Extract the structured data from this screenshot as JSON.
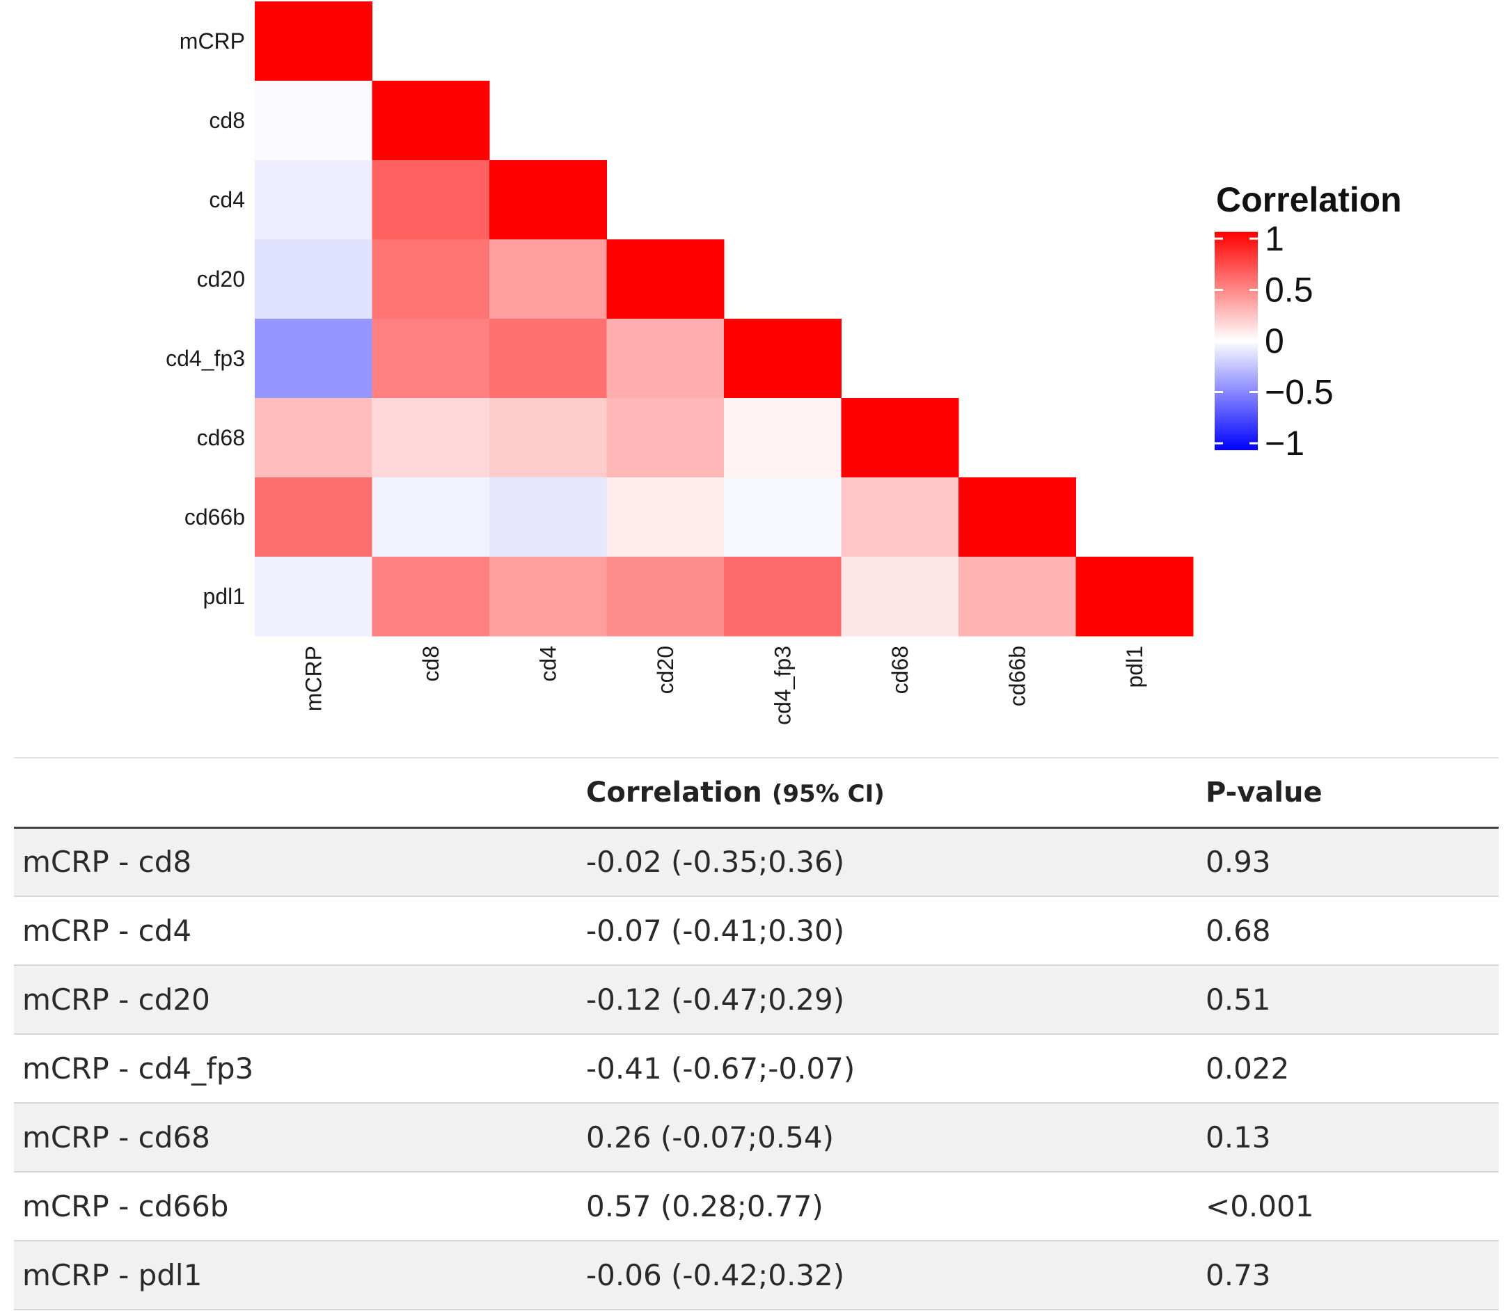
{
  "chart_data": [
    {
      "type": "heatmap",
      "variables": [
        "mCRP",
        "cd8",
        "cd4",
        "cd20",
        "cd4_fp3",
        "cd68",
        "cd66b",
        "pdl1"
      ],
      "layout": "lower-triangle",
      "matrix": [
        [
          1.0
        ],
        [
          -0.02,
          1.0
        ],
        [
          -0.07,
          0.62,
          1.0
        ],
        [
          -0.12,
          0.55,
          0.38,
          1.0
        ],
        [
          -0.41,
          0.5,
          0.56,
          0.32,
          1.0
        ],
        [
          0.26,
          0.15,
          0.2,
          0.28,
          0.05,
          1.0
        ],
        [
          0.57,
          -0.05,
          -0.1,
          0.08,
          -0.03,
          0.22,
          1.0
        ],
        [
          -0.06,
          0.5,
          0.38,
          0.45,
          0.58,
          0.1,
          0.3,
          1.0
        ]
      ],
      "legend": {
        "title": "Correlation",
        "ticks": [
          "1",
          "0.5",
          "0",
          "−0.5",
          "−1"
        ],
        "range": [
          -1,
          1
        ]
      },
      "colors": {
        "low": "#0000ff",
        "mid": "#ffffff",
        "high": "#ff0000"
      }
    },
    {
      "type": "table",
      "columns": [
        "",
        "Correlation",
        "(95% CI)",
        "P-value"
      ],
      "rows": [
        {
          "pair": "mCRP - cd8",
          "corr": "-0.02 (-0.35;0.36)",
          "p": "0.93"
        },
        {
          "pair": "mCRP - cd4",
          "corr": "-0.07 (-0.41;0.30)",
          "p": "0.68"
        },
        {
          "pair": "mCRP - cd20",
          "corr": "-0.12 (-0.47;0.29)",
          "p": "0.51"
        },
        {
          "pair": "mCRP - cd4_fp3",
          "corr": "-0.41 (-0.67;-0.07)",
          "p": "0.022"
        },
        {
          "pair": "mCRP - cd68",
          "corr": "0.26 (-0.07;0.54)",
          "p": "0.13"
        },
        {
          "pair": "mCRP - cd66b",
          "corr": "0.57 (0.28;0.77)",
          "p": "<0.001"
        },
        {
          "pair": "mCRP - pdl1",
          "corr": "-0.06 (-0.42;0.32)",
          "p": "0.73"
        }
      ]
    }
  ]
}
